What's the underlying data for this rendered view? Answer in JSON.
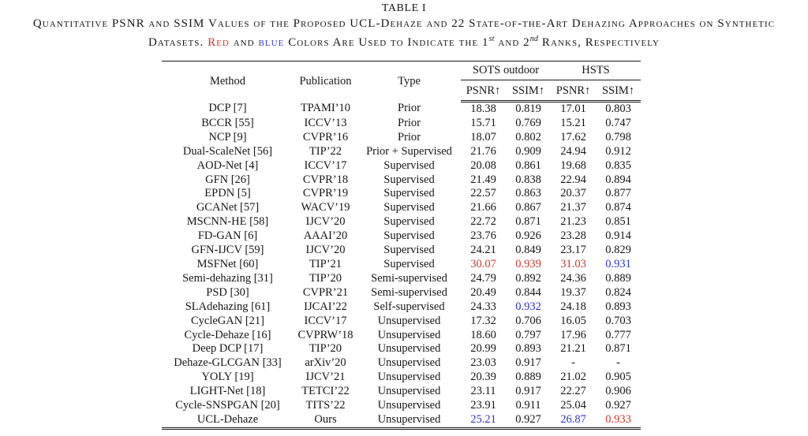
{
  "page_title": "TABLE I",
  "caption": {
    "line1": "Quantitative PSNR and SSIM Values of the Proposed UCL-Dehaze and 22 State-of-the-Art Dehazing Approaches on Synthetic",
    "line2_segments": [
      {
        "text": "Datasets. "
      },
      {
        "text": "Red",
        "color": "red"
      },
      {
        "text": " and "
      },
      {
        "text": "blue",
        "color": "blue"
      },
      {
        "text": " Colors Are Used to Indicate the 1"
      },
      {
        "text": "st",
        "sup": true
      },
      {
        "text": " and 2"
      },
      {
        "text": "nd",
        "sup": true
      },
      {
        "text": " Ranks, Respectively"
      }
    ]
  },
  "colors": {
    "red": "#c43a30",
    "blue": "#2e35c8"
  },
  "table": {
    "headers": {
      "method": "Method",
      "publication": "Publication",
      "type": "Type"
    },
    "groups": [
      {
        "label": "SOTS outdoor",
        "sub": [
          "PSNR↑",
          "SSIM↑"
        ]
      },
      {
        "label": "HSTS",
        "sub": [
          "PSNR↑",
          "SSIM↑"
        ]
      }
    ],
    "rows": [
      {
        "cells": [
          "DCP [7]",
          "TPAMI’10",
          "Prior",
          "18.38",
          "0.819",
          "17.01",
          "0.803"
        ]
      },
      {
        "cells": [
          "BCCR [55]",
          "ICCV’13",
          "Prior",
          "15.71",
          "0.769",
          "15.21",
          "0.747"
        ]
      },
      {
        "cells": [
          "NCP [9]",
          "CVPR’16",
          "Prior",
          "18.07",
          "0.802",
          "17.62",
          "0.798"
        ]
      },
      {
        "cells": [
          "Dual-ScaleNet [56]",
          "TIP’22",
          "Prior + Supervised",
          "21.76",
          "0.909",
          "24.94",
          "0.912"
        ]
      },
      {
        "cells": [
          "AOD-Net [4]",
          "ICCV’17",
          "Supervised",
          "20.08",
          "0.861",
          "19.68",
          "0.835"
        ]
      },
      {
        "cells": [
          "GFN [26]",
          "CVPR’18",
          "Supervised",
          "21.49",
          "0.838",
          "22.94",
          "0.894"
        ]
      },
      {
        "cells": [
          "EPDN [5]",
          "CVPR’19",
          "Supervised",
          "22.57",
          "0.863",
          "20.37",
          "0.877"
        ]
      },
      {
        "cells": [
          "GCANet [57]",
          "WACV’19",
          "Supervised",
          "21.66",
          "0.867",
          "21.37",
          "0.874"
        ]
      },
      {
        "cells": [
          "MSCNN-HE [58]",
          "IJCV’20",
          "Supervised",
          "22.72",
          "0.871",
          "21.23",
          "0.851"
        ]
      },
      {
        "cells": [
          "FD-GAN [6]",
          "AAAI’20",
          "Supervised",
          "23.76",
          "0.926",
          "23.28",
          "0.914"
        ]
      },
      {
        "cells": [
          "GFN-IJCV [59]",
          "IJCV’20",
          "Supervised",
          "24.21",
          "0.849",
          "23.17",
          "0.829"
        ]
      },
      {
        "cells": [
          "MSFNet [60]",
          "TIP’21",
          "Supervised",
          "30.07",
          "0.939",
          "31.03",
          "0.931"
        ],
        "colors": [
          null,
          null,
          null,
          "red",
          "red",
          "red",
          "blue"
        ]
      },
      {
        "cells": [
          "Semi-dehazing [31]",
          "TIP’20",
          "Semi-supervised",
          "24.79",
          "0.892",
          "24.36",
          "0.889"
        ]
      },
      {
        "cells": [
          "PSD [30]",
          "CVPR’21",
          "Semi-supervised",
          "20.49",
          "0.844",
          "19.37",
          "0.824"
        ]
      },
      {
        "cells": [
          "SLAdehazing [61]",
          "IJCAI’22",
          "Self-supervised",
          "24.33",
          "0.932",
          "24.18",
          "0.893"
        ],
        "colors": [
          null,
          null,
          null,
          null,
          "blue",
          null,
          null
        ]
      },
      {
        "cells": [
          "CycleGAN [21]",
          "ICCV’17",
          "Unsupervised",
          "17.32",
          "0.706",
          "16.05",
          "0.703"
        ]
      },
      {
        "cells": [
          "Cycle-Dehaze [16]",
          "CVPRW’18",
          "Unsupervised",
          "18.60",
          "0.797",
          "17.96",
          "0.777"
        ]
      },
      {
        "cells": [
          "Deep DCP [17]",
          "TIP’20",
          "Unsupervised",
          "20.99",
          "0.893",
          "21.21",
          "0.871"
        ]
      },
      {
        "cells": [
          "Dehaze-GLCGAN [33]",
          "arXiv’20",
          "Unsupervised",
          "23.03",
          "0.917",
          "-",
          "-"
        ]
      },
      {
        "cells": [
          "YOLY [19]",
          "IJCV’21",
          "Unsupervised",
          "20.39",
          "0.889",
          "21.02",
          "0.905"
        ]
      },
      {
        "cells": [
          "LIGHT-Net [18]",
          "TETCI’22",
          "Unsupervised",
          "23.11",
          "0.917",
          "22.27",
          "0.906"
        ]
      },
      {
        "cells": [
          "Cycle-SNSPGAN [20]",
          "TITS’22",
          "Unsupervised",
          "23.91",
          "0.911",
          "25.04",
          "0.927"
        ]
      },
      {
        "cells": [
          "UCL-Dehaze",
          "Ours",
          "Unsupervised",
          "25.21",
          "0.927",
          "26.87",
          "0.933"
        ],
        "colors": [
          null,
          null,
          null,
          "blue",
          null,
          "blue",
          "red"
        ]
      }
    ]
  }
}
